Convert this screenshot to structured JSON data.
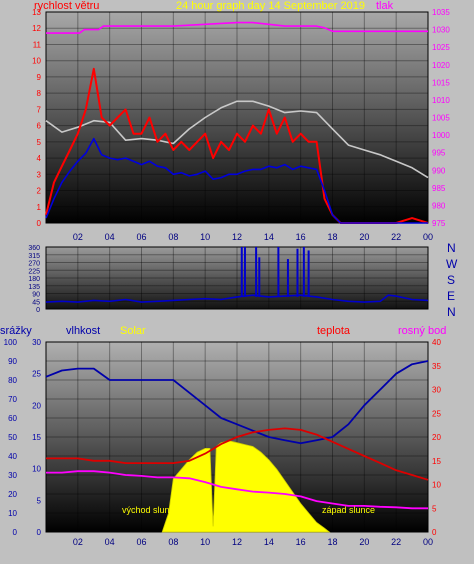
{
  "chart_data": [
    {
      "type": "line",
      "panel": "wind-pressure",
      "title": "24 hour graph day   14 September 2019",
      "left_axis_label": "rychlost větru",
      "right_axis_label": "tlak",
      "x_ticks": [
        "02",
        "04",
        "06",
        "08",
        "10",
        "12",
        "14",
        "16",
        "18",
        "20",
        "22",
        "00"
      ],
      "x_range": [
        0,
        24
      ],
      "y_left_range": [
        0,
        13
      ],
      "y_left_ticks": [
        "0",
        "1",
        "2",
        "3",
        "4",
        "5",
        "6",
        "7",
        "8",
        "9",
        "10",
        "11",
        "12",
        "13"
      ],
      "y_right_range": [
        975,
        1035
      ],
      "y_right_ticks": [
        "975",
        "980",
        "985",
        "990",
        "995",
        "1000",
        "1005",
        "1010",
        "1015",
        "1020",
        "1025",
        "1030",
        "1035"
      ],
      "series": [
        {
          "color": "#ff00ff",
          "axis": "right",
          "x": [
            0,
            2.1,
            2.4,
            3.3,
            3.6,
            5,
            8,
            10,
            12,
            13,
            14,
            15,
            16,
            17,
            17.5,
            18,
            20,
            22,
            24
          ],
          "y": [
            1029,
            1029,
            1030,
            1030,
            1031,
            1031,
            1031,
            1031.5,
            1032,
            1032,
            1031.5,
            1031,
            1031,
            1031,
            1030.5,
            1029.5,
            1029.5,
            1029.5,
            1029.5
          ]
        },
        {
          "color": "#c8c8c8",
          "axis": "left",
          "x": [
            0,
            1,
            2,
            3,
            4,
            5,
            6,
            7,
            8,
            9,
            10,
            11,
            12,
            13,
            14,
            15,
            16,
            17,
            18,
            19,
            20,
            21,
            22,
            23,
            24
          ],
          "y": [
            6.3,
            5.6,
            5.9,
            6.3,
            6.2,
            5.1,
            5.2,
            5.1,
            4.9,
            5.8,
            6.5,
            7.1,
            7.5,
            7.5,
            7.2,
            6.8,
            6.9,
            6.8,
            5.8,
            4.8,
            4.5,
            4.2,
            3.8,
            3.4,
            2.8
          ]
        },
        {
          "color": "#ff0000",
          "axis": "left",
          "x": [
            0,
            0.5,
            1,
            1.5,
            2,
            2.5,
            3,
            3.5,
            4,
            4.5,
            5,
            5.5,
            6,
            6.5,
            7,
            7.5,
            8,
            8.5,
            9,
            9.5,
            10,
            10.5,
            11,
            11.5,
            12,
            12.5,
            13,
            13.5,
            14,
            14.5,
            15,
            15.5,
            16,
            16.5,
            17,
            17.5,
            18,
            18.5,
            19,
            20,
            21,
            22,
            23,
            24
          ],
          "y": [
            0.5,
            2.5,
            3.5,
            4.5,
            5.5,
            7,
            9.5,
            6.5,
            6,
            6.5,
            7,
            5.5,
            5.5,
            6.5,
            5,
            5.5,
            4.5,
            5,
            4.5,
            5,
            5.5,
            4,
            5,
            4.5,
            5.5,
            5,
            6,
            5.5,
            7,
            5.5,
            6.5,
            5,
            5.5,
            5,
            5,
            1.5,
            0.5,
            0,
            0,
            0,
            0,
            0,
            0.3,
            0
          ]
        },
        {
          "color": "#0000dd",
          "axis": "left",
          "x": [
            0,
            0.5,
            1,
            1.5,
            2,
            2.5,
            3,
            3.5,
            4,
            4.5,
            5,
            5.5,
            6,
            6.5,
            7,
            7.5,
            8,
            8.5,
            9,
            9.5,
            10,
            10.5,
            11,
            11.5,
            12,
            12.5,
            13,
            13.5,
            14,
            14.5,
            15,
            15.5,
            16,
            16.5,
            17,
            17.5,
            18,
            18.5,
            19,
            20,
            21,
            22,
            23,
            24
          ],
          "y": [
            0.3,
            1.5,
            2.5,
            3.2,
            3.8,
            4.3,
            5.2,
            4.2,
            4.0,
            3.9,
            4.0,
            3.8,
            3.6,
            3.8,
            3.5,
            3.4,
            3.0,
            3.1,
            2.9,
            3.0,
            3.2,
            2.7,
            2.8,
            3.0,
            3.0,
            3.2,
            3.3,
            3.3,
            3.5,
            3.4,
            3.6,
            3.3,
            3.5,
            3.4,
            3.3,
            2.0,
            0.5,
            0,
            0,
            0,
            0,
            0,
            0,
            0
          ]
        }
      ]
    },
    {
      "type": "line",
      "panel": "wind-direction",
      "x_range": [
        0,
        24
      ],
      "y_range": [
        0,
        360
      ],
      "y_ticks": [
        "0",
        "45",
        "90",
        "135",
        "180",
        "225",
        "270",
        "315",
        "360"
      ],
      "compass_labels": [
        "N",
        "W",
        "S",
        "E",
        "N"
      ],
      "series": [
        {
          "color": "#0000cc",
          "x": [
            0,
            1,
            2,
            3,
            4,
            5,
            6,
            7,
            8,
            9,
            10,
            11,
            12,
            13,
            14,
            15,
            16,
            17,
            18,
            19,
            20,
            21,
            21.5,
            22,
            23,
            24
          ],
          "y": [
            40,
            45,
            40,
            50,
            45,
            55,
            40,
            45,
            50,
            55,
            60,
            55,
            70,
            80,
            70,
            75,
            80,
            70,
            55,
            45,
            40,
            45,
            80,
            75,
            55,
            50
          ]
        }
      ],
      "spikes": [
        {
          "x": 12.3,
          "y": 360
        },
        {
          "x": 12.5,
          "y": 360
        },
        {
          "x": 13.2,
          "y": 360
        },
        {
          "x": 13.4,
          "y": 300
        },
        {
          "x": 14.6,
          "y": 360
        },
        {
          "x": 15.2,
          "y": 290
        },
        {
          "x": 15.8,
          "y": 350
        },
        {
          "x": 16.2,
          "y": 360
        },
        {
          "x": 16.5,
          "y": 340
        }
      ]
    },
    {
      "type": "line",
      "panel": "humidity-temperature-solar",
      "labels": {
        "rain": "srážky",
        "humidity": "vlhkost",
        "solar": "Solar",
        "temperature": "teplota",
        "dewpoint": "rosný bod"
      },
      "annotations": [
        "východ slunce",
        "západ slunce"
      ],
      "x_range": [
        0,
        24
      ],
      "y_left_range": [
        0,
        100
      ],
      "y_left_ticks": [
        "0",
        "10",
        "20",
        "30",
        "40",
        "50",
        "60",
        "70",
        "80",
        "90",
        "100"
      ],
      "y_left2_range": [
        0,
        30
      ],
      "y_left2_ticks": [
        "0",
        "5",
        "10",
        "15",
        "20",
        "25",
        "30"
      ],
      "y_right_range": [
        0,
        40
      ],
      "y_right_ticks": [
        "0",
        "5",
        "10",
        "15",
        "20",
        "25",
        "30",
        "35",
        "40"
      ],
      "series": [
        {
          "color": "#ffff00",
          "axis": "left",
          "x": [
            7.3,
            7.7,
            8.0,
            8.5,
            9,
            9.5,
            10,
            10.3,
            10.5,
            10.7,
            11,
            11.5,
            12,
            12.5,
            13,
            13.5,
            14,
            14.5,
            15,
            15.5,
            16,
            16.5,
            17,
            17.5,
            17.8
          ],
          "y": [
            0,
            10,
            28,
            33,
            38,
            42,
            44,
            44,
            3,
            45,
            47,
            48,
            47,
            46,
            45,
            42,
            38,
            33,
            27,
            21,
            15,
            10,
            5,
            2,
            0
          ]
        },
        {
          "color": "#0000aa",
          "axis": "left2",
          "x": [
            0,
            1,
            2,
            3,
            4,
            5,
            6,
            7,
            8,
            9,
            10,
            11,
            12,
            13,
            14,
            15,
            16,
            17,
            18,
            19,
            20,
            21,
            22,
            23,
            24
          ],
          "y": [
            24.5,
            25.5,
            25.8,
            25.8,
            24,
            24,
            24,
            24,
            24,
            22,
            20,
            18,
            17,
            16,
            15,
            14.5,
            14,
            14.5,
            15,
            17,
            20,
            22.5,
            25,
            26.5,
            27
          ]
        },
        {
          "color": "#dd0000",
          "axis": "right",
          "x": [
            0,
            1,
            2,
            3,
            4,
            5,
            6,
            7,
            8,
            9,
            10,
            11,
            12,
            13,
            14,
            15,
            16,
            17,
            18,
            19,
            20,
            21,
            22,
            23,
            24
          ],
          "y": [
            15.5,
            15.5,
            15.5,
            15,
            15,
            14.5,
            14.5,
            14.5,
            14.5,
            15,
            16.5,
            18.5,
            20,
            21,
            21.5,
            21.8,
            21.5,
            20.5,
            19,
            17.5,
            16,
            14.5,
            13,
            12,
            11
          ]
        },
        {
          "color": "#ff00ff",
          "axis": "right",
          "x": [
            0,
            1,
            2,
            3,
            4,
            5,
            6,
            7,
            8,
            9,
            10,
            11,
            12,
            13,
            14,
            15,
            16,
            17,
            18,
            19,
            20,
            21,
            22,
            23,
            24
          ],
          "y": [
            12.5,
            12.5,
            12.8,
            12.8,
            12.5,
            12,
            11.8,
            11.5,
            11.5,
            11.3,
            10.5,
            9.5,
            9,
            8.5,
            8.3,
            8,
            7.5,
            6.5,
            6,
            5.5,
            5.5,
            5.3,
            5.2,
            5,
            5
          ]
        }
      ]
    }
  ],
  "colors": {
    "frame": "#c0c0c0",
    "plot_top": "#9a9a9a",
    "plot_bottom": "#000000",
    "axis_red": "#ff0000",
    "axis_magenta": "#ff00ff",
    "axis_blue": "#0000aa",
    "title_yellow": "#ffff00"
  }
}
